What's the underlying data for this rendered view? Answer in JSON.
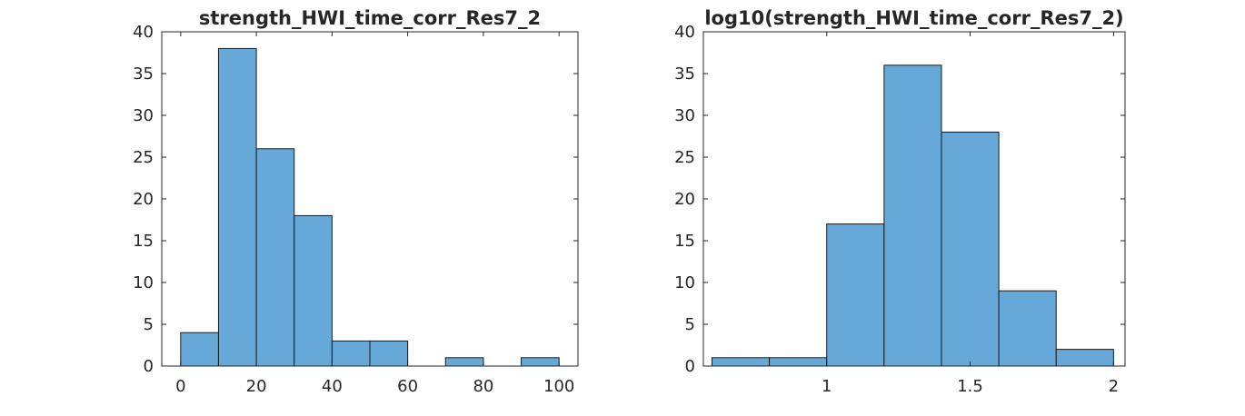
{
  "chart_data": [
    {
      "type": "bar",
      "title": "strength_HWI_time_corr_Res7_2",
      "xlabel": "",
      "ylabel": "",
      "xlim": [
        -5,
        105
      ],
      "ylim": [
        0,
        40
      ],
      "xticks": [
        0,
        20,
        40,
        60,
        80,
        100
      ],
      "xtick_labels": [
        "0",
        "20",
        "40",
        "60",
        "80",
        "100"
      ],
      "yticks": [
        0,
        5,
        10,
        15,
        20,
        25,
        30,
        35,
        40
      ],
      "ytick_labels": [
        "0",
        "5",
        "10",
        "15",
        "20",
        "25",
        "30",
        "35",
        "40"
      ],
      "bin_edges": [
        0,
        10,
        20,
        30,
        40,
        50,
        60,
        70,
        80,
        90,
        100
      ],
      "values": [
        4,
        38,
        26,
        18,
        3,
        3,
        0,
        1,
        0,
        1
      ],
      "bar_color": "#66a9d8",
      "grid": false
    },
    {
      "type": "bar",
      "title": "log10(strength_HWI_time_corr_Res7_2)",
      "xlabel": "",
      "ylabel": "",
      "xlim": [
        0.57,
        2.04
      ],
      "ylim": [
        0,
        40
      ],
      "xticks": [
        1,
        1.5,
        2
      ],
      "xtick_labels": [
        "1",
        "1.5",
        "2"
      ],
      "yticks": [
        0,
        5,
        10,
        15,
        20,
        25,
        30,
        35,
        40
      ],
      "ytick_labels": [
        "0",
        "5",
        "10",
        "15",
        "20",
        "25",
        "30",
        "35",
        "40"
      ],
      "bin_edges": [
        0.6,
        0.8,
        1.0,
        1.2,
        1.4,
        1.6,
        1.8,
        2.0
      ],
      "values": [
        1,
        1,
        17,
        36,
        28,
        9,
        2
      ],
      "bar_color": "#66a9d8",
      "grid": false
    }
  ]
}
